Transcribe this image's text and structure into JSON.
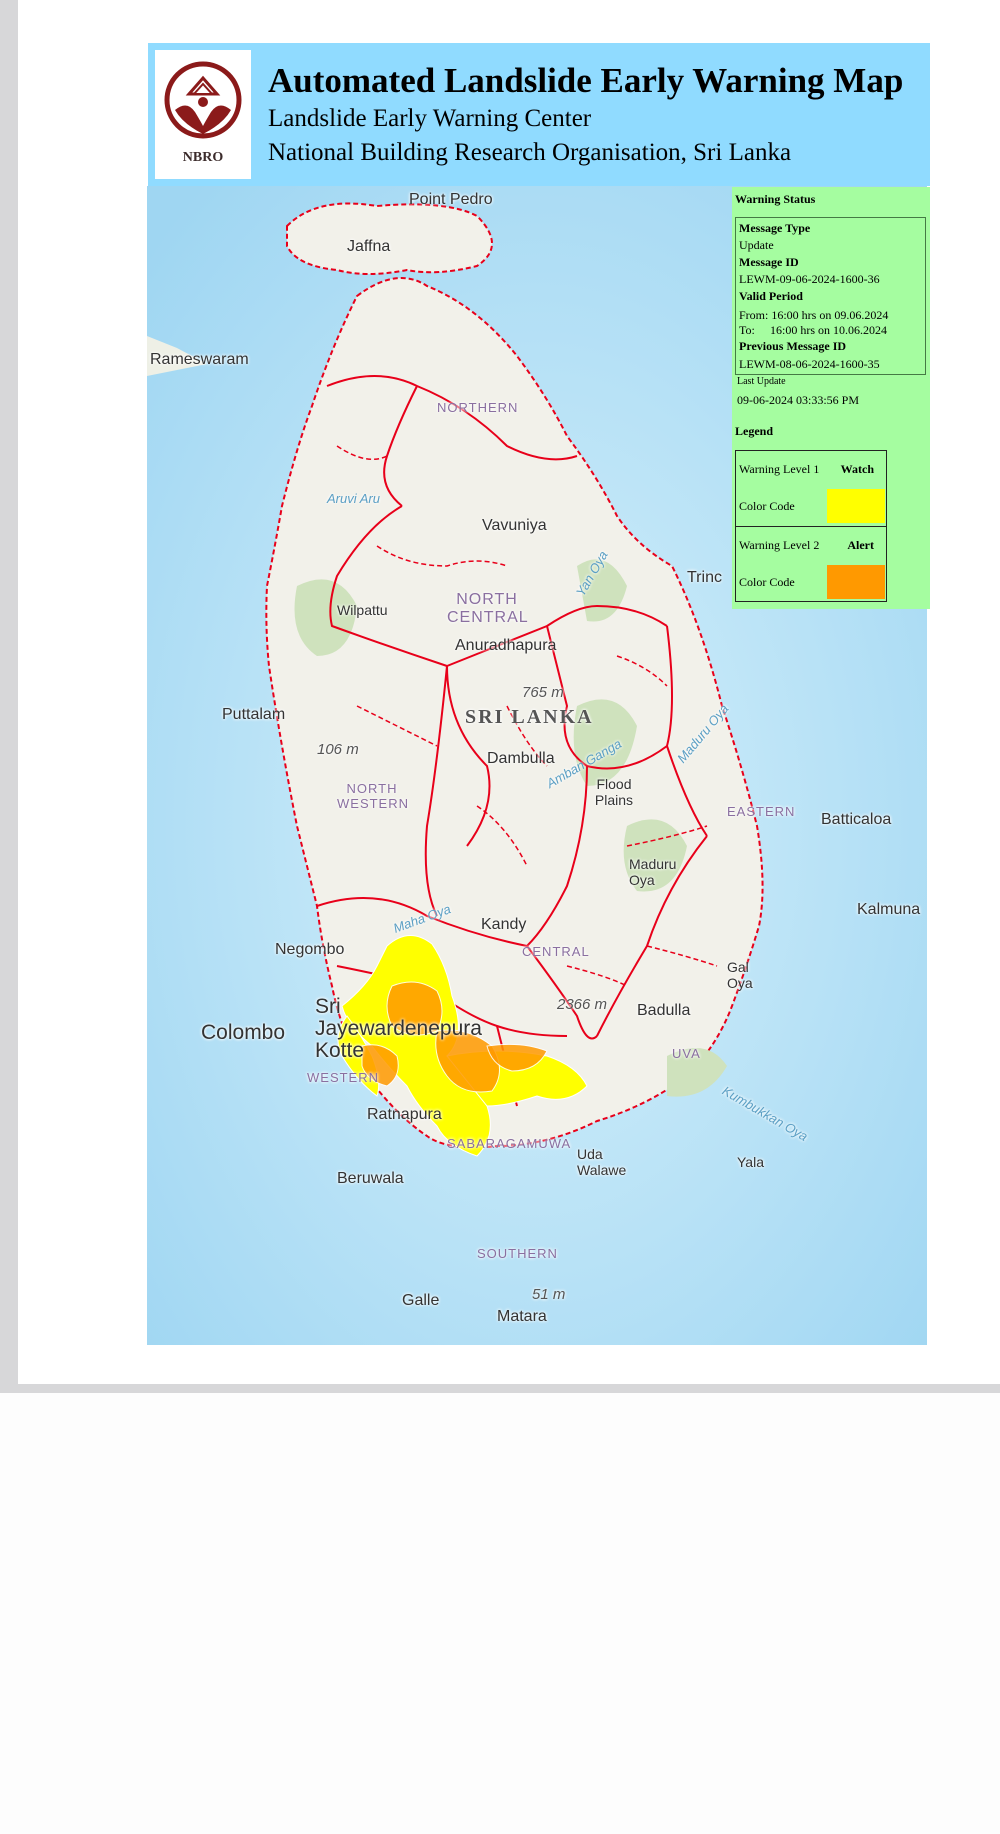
{
  "header": {
    "logo_text": "NBRO",
    "title": "Automated Landslide Early Warning Map",
    "subtitle1": "Landslide Early Warning Center",
    "subtitle2": "National Building Research Organisation, Sri Lanka"
  },
  "status": {
    "heading": "Warning Status",
    "message_type_label": "Message Type",
    "message_type": "Update",
    "message_id_label": "Message ID",
    "message_id": "LEWM-09-06-2024-1600-36",
    "valid_period_label": "Valid Period",
    "valid_from": "From: 16:00 hrs on 09.06.2024",
    "valid_to_prefix": "To:",
    "valid_to": "16:00 hrs on 10.06.2024",
    "previous_id_label": "Previous Message ID",
    "previous_id": "LEWM-08-06-2024-1600-35",
    "last_update_label": "Last Update",
    "last_update": "09-06-2024 03:33:56 PM"
  },
  "legend": {
    "heading": "Legend",
    "levels": [
      {
        "label": "Warning Level 1",
        "name": "Watch",
        "color_label": "Color Code",
        "color": "#ffff00"
      },
      {
        "label": "Warning Level 2",
        "name": "Alert",
        "color_label": "Color Code",
        "color": "#ff9900"
      }
    ]
  },
  "map": {
    "country": "SRI LANKA",
    "places": [
      "Point Pedro",
      "Jaffna",
      "Rameswaram",
      "Vavuniya",
      "Trinc",
      "Anuradhapura",
      "Puttalam",
      "Dambulla",
      "Batticaloa",
      "Kalmuna",
      "Kandy",
      "Negombo",
      "Colombo",
      "Sri Jayewardenepura Kotte",
      "Badulla",
      "Ratnapura",
      "Beruwala",
      "Galle",
      "Matara",
      "Wilpattu",
      "Flood Plains",
      "Maduru Oya",
      "Gal Oya",
      "Yala",
      "Uda Walawe"
    ],
    "regions": [
      "NORTHERN",
      "NORTH CENTRAL",
      "NORTH WESTERN",
      "EASTERN",
      "CENTRAL",
      "UVA",
      "WESTERN",
      "SABARAGAMUWA",
      "SOUTHERN"
    ],
    "elevations": [
      "765 m",
      "106 m",
      "2366 m",
      "51 m"
    ],
    "waters": [
      "Aruvi Aru",
      "Yan Oya",
      "Maduru Oya",
      "Kumbukkan Oya",
      "Maha Oya",
      "Amban Ganga"
    ],
    "colors": {
      "boundary": "#e8001a",
      "watch": "#ffff00",
      "alert": "#ff9900",
      "sea": "#bfe6f7",
      "land": "#f2f1ea",
      "forest": "#cfe2bd"
    }
  }
}
